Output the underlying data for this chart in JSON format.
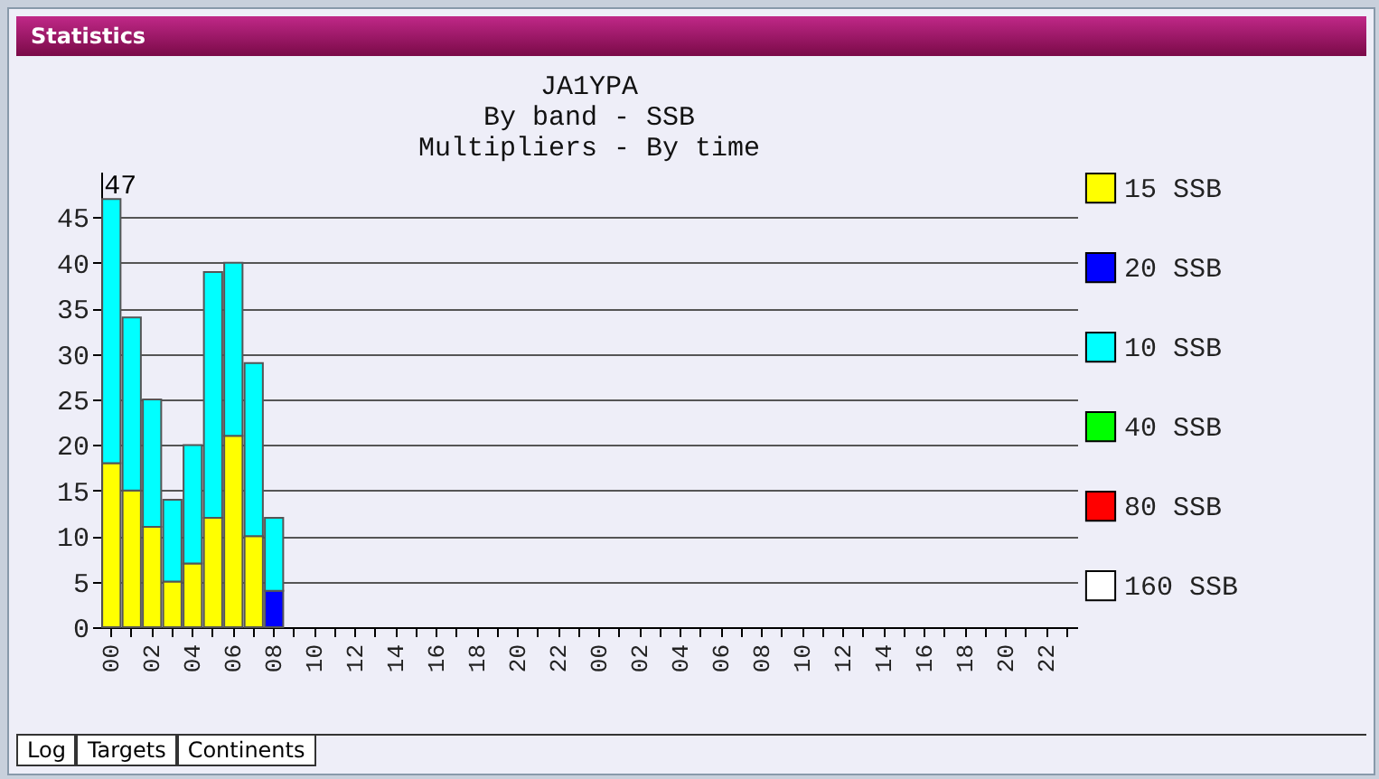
{
  "chart_data": {
    "type": "bar",
    "title": "JA1YPA",
    "subtitle": "By band - SSB\nMultipliers - By time",
    "categories": [
      "00",
      null,
      "02",
      null,
      "04",
      null,
      "06",
      null,
      "08",
      null,
      "10",
      null,
      "12",
      null,
      "14",
      null,
      "16",
      null,
      "18",
      null,
      "20",
      null,
      "22",
      null,
      "00",
      null,
      "02",
      null,
      "04",
      null,
      "06",
      null,
      "08",
      null,
      "10",
      null,
      "12",
      null,
      "14",
      null,
      "16",
      null,
      "18",
      null,
      "20",
      null,
      "22",
      null
    ],
    "stacked": true,
    "series": [
      {
        "name": "15 SSB",
        "color": "#ffff00",
        "values": [
          18,
          15,
          11,
          5,
          7,
          12,
          21,
          10,
          null,
          null,
          null,
          null,
          null,
          null,
          null,
          null,
          null,
          null,
          null,
          null,
          null,
          null,
          null,
          null,
          null,
          null,
          null,
          null,
          null,
          null,
          null,
          null,
          null,
          null,
          null,
          null,
          null,
          null,
          null,
          null,
          null,
          null,
          null,
          null,
          null,
          null,
          null,
          null
        ]
      },
      {
        "name": "20 SSB",
        "color": "#0000ff",
        "values": [
          null,
          null,
          null,
          null,
          null,
          null,
          null,
          null,
          4,
          null,
          null,
          null,
          null,
          null,
          null,
          null,
          null,
          null,
          null,
          null,
          null,
          null,
          null,
          null,
          null,
          null,
          null,
          null,
          null,
          null,
          null,
          null,
          null,
          null,
          null,
          null,
          null,
          null,
          null,
          null,
          null,
          null,
          null,
          null,
          null,
          null,
          null,
          null
        ]
      },
      {
        "name": "10 SSB",
        "color": "#00ffff",
        "values": [
          29,
          19,
          14,
          9,
          13,
          27,
          19,
          19,
          8,
          null,
          null,
          null,
          null,
          null,
          null,
          null,
          null,
          null,
          null,
          null,
          null,
          null,
          null,
          null,
          null,
          null,
          null,
          null,
          null,
          null,
          null,
          null,
          null,
          null,
          null,
          null,
          null,
          null,
          null,
          null,
          null,
          null,
          null,
          null,
          null,
          null,
          null,
          null
        ]
      },
      {
        "name": "40 SSB",
        "color": "#00ff00",
        "values": [
          null,
          null,
          null,
          null,
          null,
          null,
          null,
          null,
          null,
          null,
          null,
          null,
          null,
          null,
          null,
          null,
          null,
          null,
          null,
          null,
          null,
          null,
          null,
          null,
          null,
          null,
          null,
          null,
          null,
          null,
          null,
          null,
          null,
          null,
          null,
          null,
          null,
          null,
          null,
          null,
          null,
          null,
          null,
          null,
          null,
          null,
          null,
          null
        ]
      },
      {
        "name": "80 SSB",
        "color": "#ff0000",
        "values": [
          null,
          null,
          null,
          null,
          null,
          null,
          null,
          null,
          null,
          null,
          null,
          null,
          null,
          null,
          null,
          null,
          null,
          null,
          null,
          null,
          null,
          null,
          null,
          null,
          null,
          null,
          null,
          null,
          null,
          null,
          null,
          null,
          null,
          null,
          null,
          null,
          null,
          null,
          null,
          null,
          null,
          null,
          null,
          null,
          null,
          null,
          null,
          null
        ]
      },
      {
        "name": "160 SSB",
        "color": "#ffffff",
        "values": [
          null,
          null,
          null,
          null,
          null,
          null,
          null,
          null,
          null,
          null,
          null,
          null,
          null,
          null,
          null,
          null,
          null,
          null,
          null,
          null,
          null,
          null,
          null,
          null,
          null,
          null,
          null,
          null,
          null,
          null,
          null,
          null,
          null,
          null,
          null,
          null,
          null,
          null,
          null,
          null,
          null,
          null,
          null,
          null,
          null,
          null,
          null,
          null
        ]
      }
    ],
    "ylim": [
      0,
      50
    ],
    "yticks": [
      0,
      5,
      10,
      15,
      20,
      25,
      30,
      35,
      40,
      45
    ],
    "grid": "y",
    "legend": "right",
    "annotations": [
      "47",
      "Statistics",
      "Log",
      "Targets",
      "Continents"
    ]
  }
}
